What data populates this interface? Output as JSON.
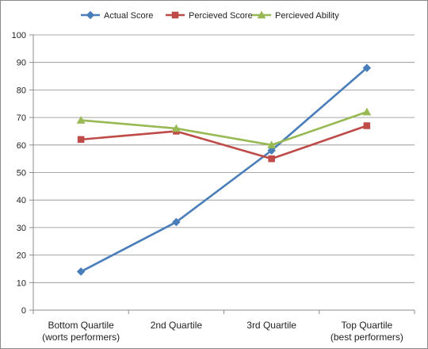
{
  "chart_data": {
    "type": "line",
    "title": "",
    "xlabel": "",
    "ylabel": "",
    "ylim": [
      0,
      100
    ],
    "yticks": [
      0,
      10,
      20,
      30,
      40,
      50,
      60,
      70,
      80,
      90,
      100
    ],
    "grid": true,
    "legend_position": "top",
    "categories": [
      [
        "Bottom Quartile",
        "(worts performers)"
      ],
      [
        "2nd Quartile"
      ],
      [
        "3rd Quartile"
      ],
      [
        "Top Quartile",
        "(best performers)"
      ]
    ],
    "series": [
      {
        "name": "Actual Score",
        "values": [
          14,
          32,
          58,
          88
        ],
        "color": "#4a7ebb",
        "marker": "diamond"
      },
      {
        "name": "Percieved Score",
        "values": [
          62,
          65,
          55,
          67
        ],
        "color": "#be4b48",
        "marker": "square"
      },
      {
        "name": "Percieved Ability",
        "values": [
          69,
          66,
          60,
          72
        ],
        "color": "#98b954",
        "marker": "triangle"
      }
    ]
  }
}
